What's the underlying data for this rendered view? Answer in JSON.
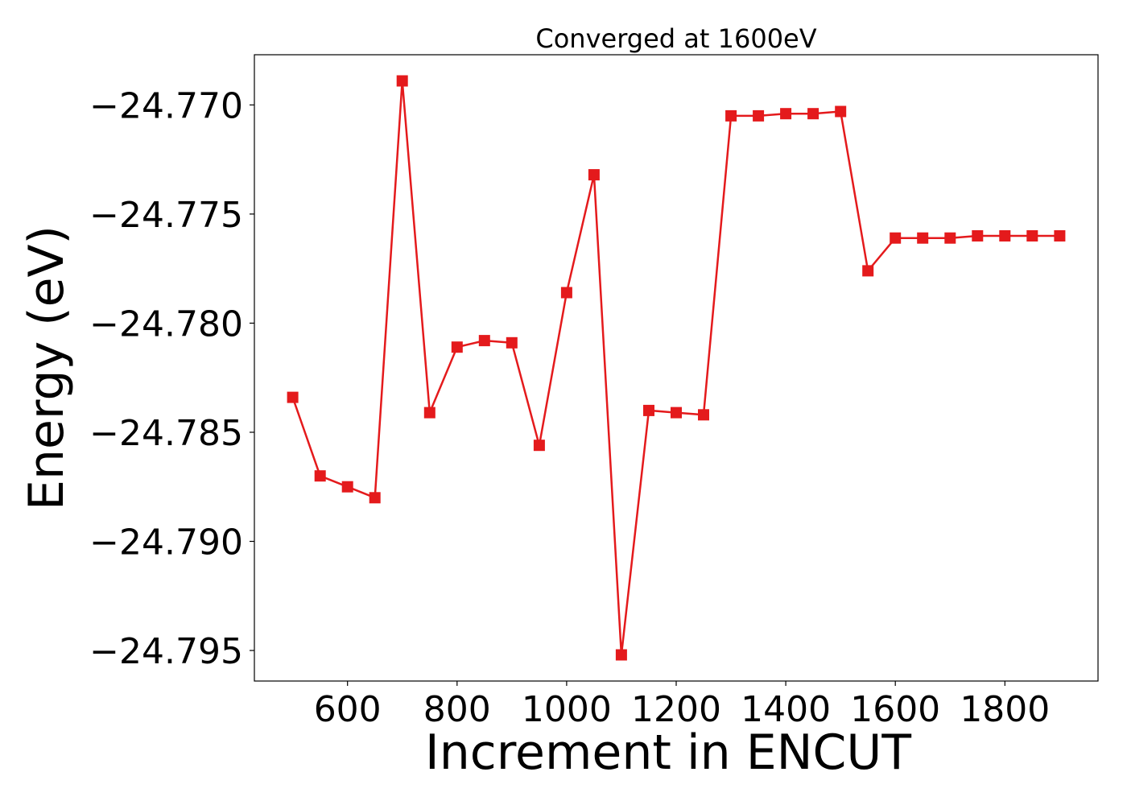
{
  "chart_data": {
    "type": "line",
    "title": "Converged at 1600eV",
    "xlabel": "Increment in ENCUT",
    "ylabel": "Energy (eV)",
    "x": [
      500,
      550,
      600,
      650,
      700,
      750,
      800,
      850,
      900,
      950,
      1000,
      1050,
      1100,
      1150,
      1200,
      1250,
      1300,
      1350,
      1400,
      1450,
      1500,
      1550,
      1600,
      1650,
      1700,
      1750,
      1800,
      1850,
      1900
    ],
    "series": [
      {
        "values": [
          -24.7834,
          -24.787,
          -24.7875,
          -24.788,
          -24.7689,
          -24.7841,
          -24.7811,
          -24.7808,
          -24.7809,
          -24.7856,
          -24.7786,
          -24.7732,
          -24.7952,
          -24.784,
          -24.7841,
          -24.7842,
          -24.7705,
          -24.7705,
          -24.7704,
          -24.7704,
          -24.7703,
          -24.7776,
          -24.7761,
          -24.7761,
          -24.7761,
          -24.776,
          -24.776,
          -24.776,
          -24.776
        ],
        "color": "#e41a1c",
        "marker": "square"
      }
    ],
    "xlim": [
      430,
      1970
    ],
    "ylim": [
      -24.7964,
      -24.7677
    ],
    "xticks": [
      600,
      800,
      1000,
      1200,
      1400,
      1600,
      1800
    ],
    "xtick_labels": [
      "600",
      "800",
      "1000",
      "1200",
      "1400",
      "1600",
      "1800"
    ],
    "yticks": [
      -24.77,
      -24.775,
      -24.78,
      -24.785,
      -24.79,
      -24.795
    ],
    "ytick_labels": [
      "−24.770",
      "−24.775",
      "−24.780",
      "−24.785",
      "−24.790",
      "−24.795"
    ],
    "grid": false,
    "legend": "none"
  }
}
